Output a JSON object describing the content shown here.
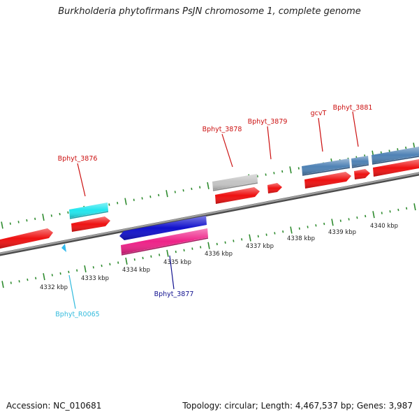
{
  "title": "Burkholderia phytofirmans PsJN chromosome 1, complete genome",
  "footer": {
    "accession": "Accession: NC_010681",
    "summary": "Topology: circular; Length: 4,467,537 bp; Genes: 3,987"
  },
  "colors": {
    "backbone": "#8c8c8c",
    "tick": "#2e8b2e",
    "cds_red": "#ee1111",
    "cyan": "#22e6ee",
    "blue": "#1111cc",
    "magenta": "#ee2288",
    "gray": "#c4c4c4",
    "steel": "#4f82b5",
    "label_red": "#cc1111",
    "label_blue": "#11118f",
    "label_cyan": "#33bbdd"
  },
  "scale_labels": [
    "4332 kbp",
    "4333 kbp",
    "4334 kbp",
    "4335 kbp",
    "4336 kbp",
    "4337 kbp",
    "4338 kbp",
    "4339 kbp",
    "4340 kbp"
  ],
  "gene_labels": [
    {
      "text": "Bphyt_3876",
      "color": "label_red"
    },
    {
      "text": "Bphyt_3878",
      "color": "label_red"
    },
    {
      "text": "Bphyt_3879",
      "color": "label_red"
    },
    {
      "text": "gcvT",
      "color": "label_red"
    },
    {
      "text": "Bphyt_3881",
      "color": "label_red"
    },
    {
      "text": "Bphyt_3877",
      "color": "label_blue"
    },
    {
      "text": "Bphyt_R0065",
      "color": "label_cyan"
    }
  ]
}
